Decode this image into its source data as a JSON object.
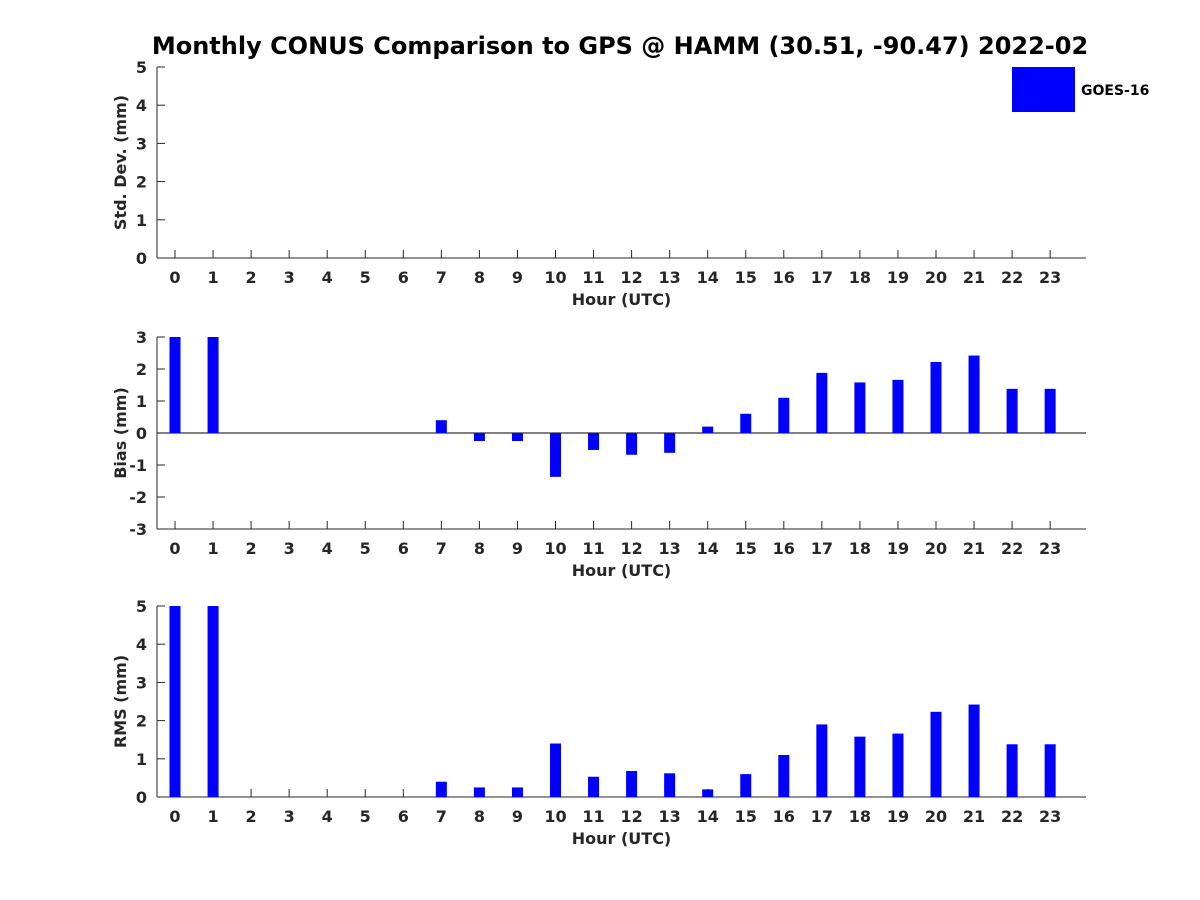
{
  "title": "Monthly CONUS Comparison to GPS @ HAMM (30.51, -90.47) 2022-02",
  "legend": {
    "label": "GOES-16",
    "color": "#0000ff"
  },
  "chart_data": [
    {
      "type": "bar",
      "name": "std-dev",
      "ylabel": "Std. Dev. (mm)",
      "xlabel": "Hour (UTC)",
      "categories": [
        "0",
        "1",
        "2",
        "3",
        "4",
        "5",
        "6",
        "7",
        "8",
        "9",
        "10",
        "11",
        "12",
        "13",
        "14",
        "15",
        "16",
        "17",
        "18",
        "19",
        "20",
        "21",
        "22",
        "23"
      ],
      "values": [
        null,
        null,
        null,
        null,
        null,
        null,
        null,
        null,
        null,
        null,
        null,
        null,
        null,
        null,
        null,
        null,
        null,
        null,
        null,
        null,
        null,
        null,
        null,
        null
      ],
      "ylim": [
        0,
        5
      ],
      "yticks": [
        "0",
        "1",
        "2",
        "3",
        "4",
        "5"
      ],
      "zero_line": false
    },
    {
      "type": "bar",
      "name": "bias",
      "ylabel": "Bias (mm)",
      "xlabel": "Hour (UTC)",
      "categories": [
        "0",
        "1",
        "2",
        "3",
        "4",
        "5",
        "6",
        "7",
        "8",
        "9",
        "10",
        "11",
        "12",
        "13",
        "14",
        "15",
        "16",
        "17",
        "18",
        "19",
        "20",
        "21",
        "22",
        "23"
      ],
      "values": [
        3.0,
        3.0,
        null,
        null,
        null,
        null,
        null,
        0.4,
        -0.25,
        -0.25,
        -1.37,
        -0.53,
        -0.68,
        -0.62,
        0.2,
        0.6,
        1.1,
        1.88,
        1.58,
        1.66,
        2.22,
        2.42,
        1.38,
        1.38
      ],
      "ylim": [
        -3,
        3
      ],
      "yticks": [
        "-3",
        "-2",
        "-1",
        "0",
        "1",
        "2",
        "3"
      ],
      "zero_line": true
    },
    {
      "type": "bar",
      "name": "rms",
      "ylabel": "RMS (mm)",
      "xlabel": "Hour (UTC)",
      "categories": [
        "0",
        "1",
        "2",
        "3",
        "4",
        "5",
        "6",
        "7",
        "8",
        "9",
        "10",
        "11",
        "12",
        "13",
        "14",
        "15",
        "16",
        "17",
        "18",
        "19",
        "20",
        "21",
        "22",
        "23"
      ],
      "values": [
        5.0,
        5.0,
        null,
        null,
        null,
        null,
        null,
        0.4,
        0.25,
        0.25,
        1.4,
        0.53,
        0.68,
        0.62,
        0.2,
        0.6,
        1.1,
        1.9,
        1.58,
        1.66,
        2.23,
        2.42,
        1.38,
        1.38
      ],
      "ylim": [
        0,
        5
      ],
      "yticks": [
        "0",
        "1",
        "2",
        "3",
        "4",
        "5"
      ],
      "zero_line": false
    }
  ]
}
